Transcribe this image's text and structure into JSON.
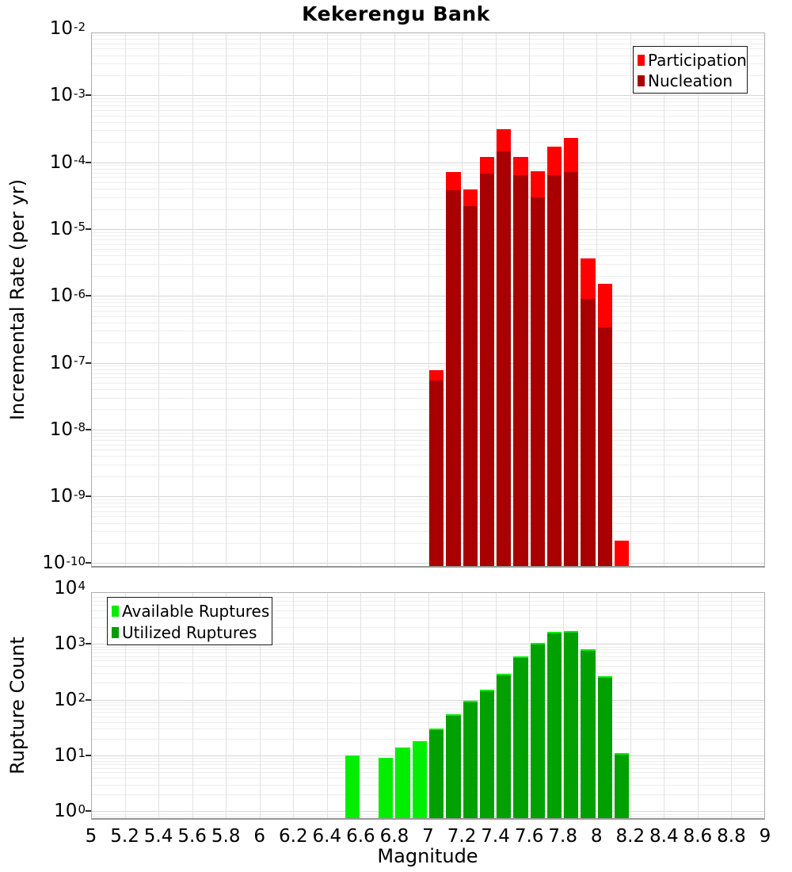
{
  "title": "Kekerengu Bank",
  "chart_data": [
    {
      "type": "bar",
      "panel": "top",
      "ylabel": "Incremental Rate (per yr)",
      "xlabel": "Magnitude",
      "yscale": "log",
      "ylim": [
        1e-10,
        0.01
      ],
      "xlim": [
        5,
        9
      ],
      "grid": true,
      "bin_width": 0.1,
      "x": [
        7.05,
        7.15,
        7.25,
        7.35,
        7.45,
        7.55,
        7.65,
        7.75,
        7.85,
        7.95,
        8.05,
        8.15
      ],
      "series": [
        {
          "name": "Participation",
          "color": "#ff0000",
          "values": [
            7.7e-08,
            7.1e-05,
            3.9e-05,
            0.00012,
            0.00031,
            0.00012,
            7.3e-05,
            0.00017,
            0.00023,
            3.6e-06,
            1.5e-06,
            2.2e-10
          ]
        },
        {
          "name": "Nucleation",
          "color": "#a80000",
          "values": [
            5.4e-08,
            3.8e-05,
            2.2e-05,
            6.8e-05,
            0.000145,
            6.4e-05,
            3e-05,
            6.4e-05,
            7.2e-05,
            9e-07,
            3.4e-07,
            null
          ]
        }
      ],
      "y_tick_exponents": [
        -2,
        -3,
        -4,
        -5,
        -6,
        -7,
        -8,
        -9,
        -10
      ],
      "legend_position": "top-right"
    },
    {
      "type": "bar",
      "panel": "bottom",
      "ylabel": "Rupture Count",
      "xlabel": "Magnitude",
      "yscale": "log",
      "ylim": [
        1,
        10000
      ],
      "xlim": [
        5,
        9
      ],
      "grid": true,
      "bin_width": 0.1,
      "x": [
        6.55,
        6.75,
        6.85,
        6.95,
        7.05,
        7.15,
        7.25,
        7.35,
        7.45,
        7.55,
        7.65,
        7.75,
        7.85,
        7.95,
        8.05,
        8.15
      ],
      "series": [
        {
          "name": "Available Ruptures",
          "color": "#00ee00",
          "values": [
            10,
            9,
            14,
            18,
            30,
            55,
            95,
            150,
            290,
            600,
            1050,
            1650,
            1700,
            800,
            260,
            11
          ]
        },
        {
          "name": "Utilized Ruptures",
          "color": "#00a000",
          "values": [
            0,
            0,
            0,
            0,
            30,
            55,
            95,
            150,
            290,
            600,
            1050,
            1650,
            1700,
            800,
            260,
            11
          ]
        }
      ],
      "y_tick_exponents": [
        4,
        3,
        2,
        1,
        0
      ],
      "legend_position": "top-left"
    }
  ],
  "x_ticks": [
    "5",
    "5.2",
    "5.4",
    "5.6",
    "5.8",
    "6",
    "6.2",
    "6.4",
    "6.6",
    "6.8",
    "7",
    "7.2",
    "7.4",
    "7.6",
    "7.8",
    "8",
    "8.2",
    "8.4",
    "8.6",
    "8.8",
    "9"
  ]
}
